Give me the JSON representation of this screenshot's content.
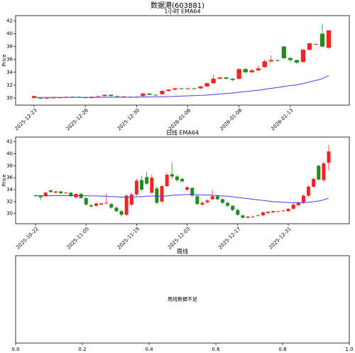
{
  "title": "数据港(603881)",
  "chart_data": [
    {
      "type": "candlestick",
      "title": "1小时 EMA64",
      "ylabel": "Price",
      "categories": [
        "2025-12-23",
        null,
        null,
        null,
        null,
        null,
        null,
        null,
        "2025-12-26",
        null,
        null,
        null,
        null,
        null,
        null,
        null,
        "2025-12-30",
        null,
        null,
        null,
        null,
        null,
        null,
        null,
        "2026-01-06",
        null,
        null,
        null,
        null,
        null,
        null,
        null,
        "2026-01-08",
        null,
        null,
        null,
        null,
        null,
        null,
        null,
        "2026-01-13",
        null,
        null,
        null,
        null,
        null,
        null
      ],
      "open": [
        30.0,
        30.0,
        29.9,
        30.0,
        30.0,
        30.1,
        30.2,
        30.2,
        30.1,
        30.0,
        30.2,
        30.3,
        30.5,
        30.3,
        30.2,
        30.2,
        30.1,
        30.3,
        30.7,
        30.5,
        30.6,
        31.1,
        31.3,
        31.5,
        31.4,
        31.5,
        31.5,
        31.8,
        32.3,
        33.0,
        33.2,
        33.0,
        33.0,
        34.5,
        34.0,
        34.3,
        34.8,
        35.7,
        35.9,
        38.0,
        36.2,
        35.9,
        35.6,
        37.5,
        38.3,
        40.0,
        37.8
      ],
      "high": [
        30.35,
        30.05,
        30.05,
        30.1,
        30.15,
        30.25,
        30.25,
        30.25,
        30.15,
        30.25,
        30.35,
        30.55,
        30.55,
        30.35,
        30.3,
        30.25,
        30.25,
        30.8,
        30.75,
        30.6,
        31.2,
        31.4,
        31.6,
        31.6,
        31.6,
        31.6,
        31.9,
        32.4,
        33.6,
        33.3,
        33.3,
        33.1,
        34.6,
        34.7,
        34.5,
        35.0,
        36.0,
        36.6,
        36.0,
        38.1,
        36.4,
        36.0,
        37.6,
        38.6,
        38.5,
        41.5,
        40.6
      ],
      "low": [
        29.95,
        29.85,
        29.85,
        29.95,
        29.95,
        30.05,
        30.1,
        30.05,
        29.95,
        29.95,
        30.15,
        30.25,
        30.25,
        30.1,
        30.1,
        30.05,
        30.05,
        30.25,
        30.4,
        30.35,
        30.5,
        31.0,
        31.2,
        31.3,
        31.3,
        31.3,
        31.4,
        31.7,
        32.2,
        32.9,
        32.9,
        32.6,
        32.9,
        33.9,
        33.9,
        34.2,
        34.7,
        35.5,
        35.6,
        36.0,
        35.6,
        35.3,
        35.5,
        37.3,
        38.2,
        37.8,
        37.6
      ],
      "close": [
        30.3,
        29.9,
        30.0,
        30.05,
        30.1,
        30.2,
        30.15,
        30.1,
        30.0,
        30.2,
        30.3,
        30.5,
        30.3,
        30.2,
        30.25,
        30.1,
        30.2,
        30.7,
        30.5,
        30.4,
        31.1,
        31.3,
        31.5,
        31.4,
        31.5,
        31.4,
        31.8,
        32.3,
        33.0,
        33.2,
        33.0,
        32.8,
        34.5,
        34.0,
        34.3,
        34.6,
        35.7,
        35.9,
        35.8,
        36.2,
        35.9,
        35.5,
        37.5,
        38.5,
        38.4,
        38.0,
        40.5
      ],
      "up_color": "#ff2020",
      "down_color": "#1e8c1e",
      "series": [
        {
          "color": "#4040ee",
          "values": [
            30.1,
            30.1,
            30.1,
            30.1,
            30.1,
            30.1,
            30.1,
            30.1,
            30.1,
            30.1,
            30.1,
            30.11,
            30.12,
            30.12,
            30.13,
            30.13,
            30.14,
            30.15,
            30.17,
            30.18,
            30.2,
            30.23,
            30.27,
            30.3,
            30.34,
            30.37,
            30.41,
            30.46,
            30.54,
            30.63,
            30.71,
            30.78,
            30.9,
            31.0,
            31.1,
            31.2,
            31.35,
            31.5,
            31.63,
            31.8,
            31.93,
            32.05,
            32.25,
            32.5,
            32.75,
            33.0,
            33.5
          ]
        }
      ],
      "ylim": [
        28.9,
        42.8
      ],
      "yticks": [
        30,
        32,
        34,
        36,
        38,
        40,
        42
      ]
    },
    {
      "type": "candlestick",
      "title": "日线 EMA64",
      "ylabel": "Price",
      "categories": [
        "2025-10-22",
        null,
        null,
        null,
        null,
        null,
        null,
        null,
        null,
        null,
        "2025-11-05",
        null,
        null,
        null,
        null,
        null,
        null,
        null,
        null,
        null,
        "2025-11-19",
        null,
        null,
        null,
        null,
        null,
        null,
        null,
        null,
        null,
        "2025-12-03",
        null,
        null,
        null,
        null,
        null,
        null,
        null,
        null,
        null,
        "2025-12-17",
        null,
        null,
        null,
        null,
        null,
        null,
        null,
        null,
        null,
        "2025-12-31",
        null,
        null,
        null,
        null,
        null,
        null,
        null,
        null
      ],
      "open": [
        33.0,
        32.9,
        32.9,
        33.9,
        33.5,
        33.7,
        33.4,
        33.5,
        32.7,
        33.3,
        32.6,
        31.4,
        31.3,
        31.5,
        31.7,
        31.6,
        31.0,
        30.4,
        29.8,
        31.5,
        33.2,
        35.6,
        36.1,
        33.5,
        34.2,
        32.0,
        34.6,
        36.6,
        36.2,
        35.8,
        34.0,
        34.3,
        32.9,
        31.5,
        31.9,
        32.4,
        32.9,
        32.4,
        31.8,
        31.3,
        30.6,
        29.7,
        29.3,
        29.4,
        29.7,
        29.7,
        30.1,
        30.2,
        30.3,
        30.4,
        30.4,
        30.8,
        31.4,
        31.8,
        33.0,
        34.5,
        38.0,
        35.6,
        38.5
      ],
      "high": [
        33.2,
        33.0,
        33.6,
        34.0,
        33.8,
        33.8,
        33.6,
        33.6,
        33.4,
        33.4,
        32.8,
        31.6,
        31.8,
        31.8,
        33.3,
        31.8,
        31.2,
        30.6,
        33.2,
        33.5,
        35.8,
        36.3,
        37.0,
        36.5,
        34.6,
        34.8,
        36.8,
        38.6,
        36.4,
        36.0,
        34.6,
        34.4,
        33.2,
        32.0,
        32.4,
        33.9,
        33.2,
        32.6,
        32.0,
        31.4,
        30.8,
        29.8,
        29.6,
        29.7,
        29.9,
        30.3,
        30.4,
        30.5,
        30.5,
        30.6,
        30.9,
        31.7,
        32.0,
        33.2,
        34.7,
        36.0,
        38.2,
        38.7,
        41.5
      ],
      "low": [
        32.8,
        32.2,
        32.8,
        33.5,
        33.4,
        33.3,
        33.3,
        32.8,
        32.6,
        32.5,
        31.3,
        31.0,
        31.2,
        31.4,
        31.5,
        30.8,
        30.2,
        29.5,
        29.6,
        31.2,
        33.0,
        33.8,
        34.8,
        33.3,
        31.5,
        31.8,
        34.4,
        35.8,
        35.3,
        35.2,
        33.8,
        32.8,
        31.4,
        31.3,
        31.7,
        32.3,
        32.2,
        31.6,
        31.1,
        30.4,
        29.6,
        29.1,
        29.2,
        29.3,
        29.5,
        29.6,
        30.0,
        30.1,
        30.2,
        30.3,
        30.3,
        30.7,
        31.2,
        31.6,
        32.8,
        34.3,
        35.5,
        35.3,
        37.2
      ],
      "close": [
        32.9,
        32.7,
        33.5,
        33.6,
        33.7,
        33.4,
        33.5,
        32.9,
        33.3,
        32.6,
        31.5,
        31.2,
        31.7,
        31.7,
        31.8,
        31.0,
        30.4,
        29.8,
        33.0,
        33.2,
        35.5,
        34.0,
        35.0,
        36.0,
        31.8,
        34.6,
        36.5,
        36.2,
        35.6,
        35.4,
        34.4,
        33.0,
        31.6,
        31.8,
        32.2,
        32.9,
        32.4,
        31.8,
        31.3,
        30.6,
        29.8,
        29.3,
        29.5,
        29.5,
        29.6,
        30.2,
        30.3,
        30.4,
        30.4,
        30.5,
        30.8,
        31.5,
        31.8,
        33.0,
        34.5,
        35.8,
        35.7,
        38.4,
        40.4
      ],
      "up_color": "#ff2020",
      "down_color": "#1e8c1e",
      "series": [
        {
          "color": "#4040ee",
          "values": [
            33.0,
            33.0,
            33.0,
            33.0,
            33.0,
            33.0,
            33.0,
            33.0,
            33.0,
            33.0,
            33.0,
            32.95,
            32.95,
            32.9,
            32.9,
            32.85,
            32.8,
            32.75,
            32.75,
            32.75,
            32.8,
            32.85,
            32.9,
            32.95,
            32.9,
            32.9,
            32.95,
            33.05,
            33.1,
            33.15,
            33.2,
            33.2,
            33.15,
            33.1,
            33.1,
            33.05,
            33.0,
            32.95,
            32.9,
            32.8,
            32.7,
            32.6,
            32.5,
            32.4,
            32.3,
            32.2,
            32.1,
            32.0,
            31.95,
            31.9,
            31.85,
            31.8,
            31.8,
            31.85,
            31.9,
            32.0,
            32.1,
            32.3,
            32.6
          ]
        }
      ],
      "ylim": [
        28.3,
        42.8
      ],
      "yticks": [
        30,
        32,
        34,
        36,
        38,
        40,
        42
      ]
    },
    {
      "type": "empty",
      "title": "周线",
      "annotation": "周线数据不足",
      "xlim": [
        0,
        1
      ],
      "xticks": [
        {
          "value": 0,
          "label": "0.0"
        },
        {
          "value": 0.2,
          "label": "0.2"
        },
        {
          "value": 0.4,
          "label": "0.4"
        },
        {
          "value": 0.6,
          "label": "0.6"
        },
        {
          "value": 0.8,
          "label": "0.8"
        },
        {
          "value": 1,
          "label": "1.0"
        }
      ]
    }
  ]
}
